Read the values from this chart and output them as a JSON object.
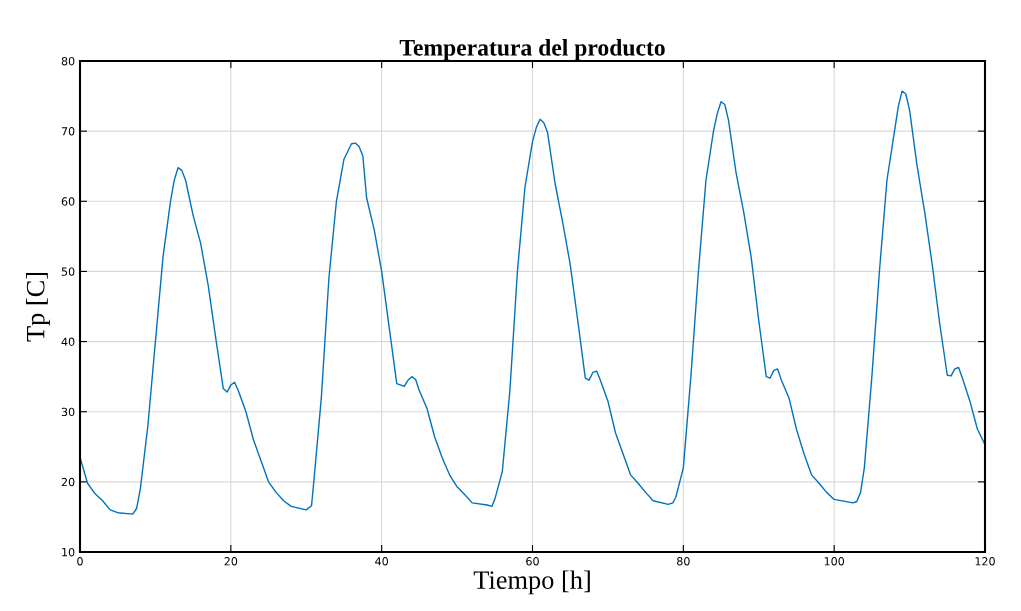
{
  "chart_data": {
    "type": "line",
    "title": "Temperatura del producto",
    "xlabel": "Tiempo [h]",
    "ylabel": "Tp [C]",
    "x": [
      0,
      1,
      2,
      3,
      4,
      5,
      7,
      7.5,
      8,
      9,
      10,
      11,
      12,
      12.5,
      13,
      13.5,
      14,
      15,
      16,
      17,
      18,
      19,
      19.5,
      20,
      20.5,
      21,
      22,
      23,
      24,
      25,
      26,
      27,
      28,
      30,
      30.7,
      31,
      32,
      33,
      34,
      35,
      36,
      36.5,
      37,
      37.5,
      38,
      39,
      40,
      41,
      42,
      43,
      43.5,
      44,
      44.5,
      45,
      46,
      47,
      48,
      49,
      50,
      51,
      52,
      54,
      54.6,
      55,
      56,
      57,
      58,
      59,
      60,
      60.5,
      61,
      61.5,
      62,
      63,
      64,
      65,
      66,
      67,
      67.5,
      68,
      68.5,
      69,
      70,
      71,
      72,
      73,
      74,
      75,
      76,
      78,
      78.6,
      79,
      80,
      81,
      82,
      83,
      84,
      84.5,
      85,
      85.5,
      86,
      87,
      88,
      89,
      90,
      91,
      91.5,
      92,
      92.5,
      93,
      94,
      95,
      96,
      97,
      98,
      99,
      100,
      102.5,
      103,
      103.5,
      104,
      105,
      106,
      107,
      108,
      108.5,
      109,
      109.5,
      110,
      111,
      112,
      113,
      114,
      115,
      115.5,
      116,
      116.5,
      117,
      118,
      119,
      120
    ],
    "series": [
      {
        "color": "#0072bd",
        "values": [
          23.5,
          19.8,
          18.3,
          17.3,
          16,
          15.6,
          15.4,
          16.2,
          19,
          28,
          40,
          52,
          60,
          63,
          64.8,
          64.4,
          63,
          58,
          54,
          48,
          40.5,
          33.3,
          32.8,
          33.8,
          34.2,
          33,
          30,
          26,
          23,
          20,
          18.5,
          17.3,
          16.5,
          16,
          16.6,
          20,
          32,
          49,
          60,
          66,
          68.2,
          68.3,
          67.8,
          66.5,
          60.5,
          56,
          50,
          42,
          34,
          33.6,
          34.5,
          35,
          34.6,
          33,
          30.5,
          26.5,
          23.5,
          21,
          19.3,
          18.2,
          17,
          16.7,
          16.5,
          17.5,
          21.5,
          33,
          50,
          62,
          68.5,
          70.5,
          71.7,
          71.2,
          69.8,
          62.5,
          57,
          51,
          43,
          34.8,
          34.5,
          35.6,
          35.8,
          34.5,
          31.5,
          27,
          24,
          21,
          19.8,
          18.5,
          17.3,
          16.8,
          17,
          17.8,
          22,
          35,
          50,
          63,
          70,
          72.5,
          74.2,
          73.8,
          71.5,
          64,
          58.5,
          52,
          43,
          35,
          34.8,
          35.9,
          36.1,
          34.5,
          32,
          27.5,
          24,
          21,
          19.8,
          18.5,
          17.5,
          17,
          17.2,
          18.5,
          22,
          35,
          50,
          63,
          70,
          73.5,
          75.7,
          75.3,
          73,
          65,
          58.5,
          51,
          42.5,
          35.2,
          35.1,
          36.1,
          36.3,
          34.8,
          31.5,
          27.5,
          25.3
        ]
      }
    ],
    "xlim": [
      0,
      120
    ],
    "ylim": [
      10,
      80
    ],
    "xticks": [
      0,
      20,
      40,
      60,
      80,
      100,
      120
    ],
    "yticks": [
      10,
      20,
      30,
      40,
      50,
      60,
      70,
      80
    ],
    "grid": true
  }
}
